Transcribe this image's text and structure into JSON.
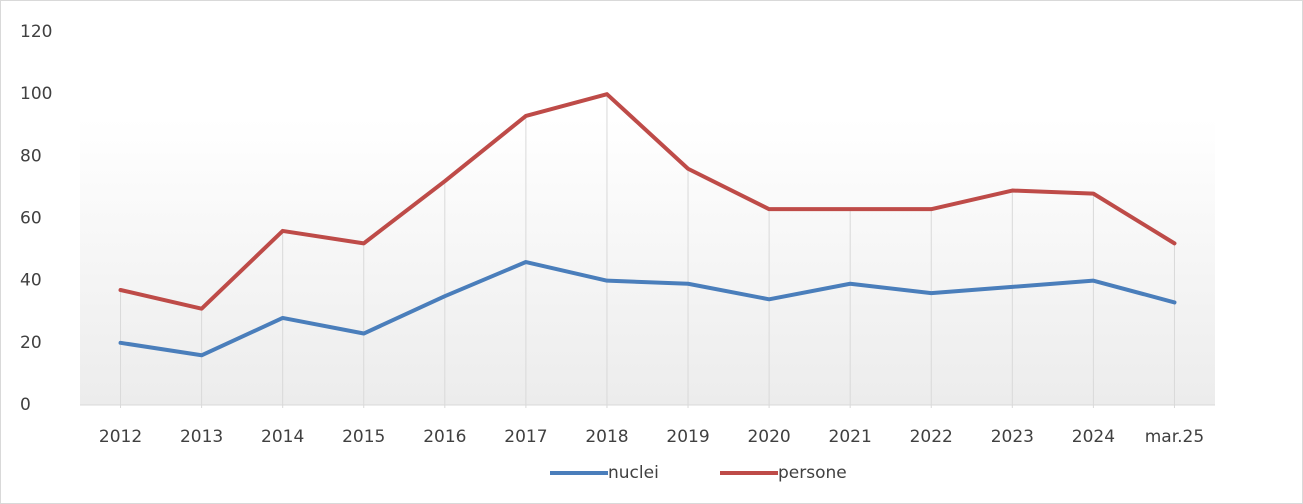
{
  "chart_data": {
    "type": "line",
    "categories": [
      "2012",
      "2013",
      "2014",
      "2015",
      "2016",
      "2017",
      "2018",
      "2019",
      "2020",
      "2021",
      "2022",
      "2023",
      "2024",
      "mar.25"
    ],
    "series": [
      {
        "name": "nuclei",
        "color": "#4a7ebb",
        "values": [
          20,
          16,
          28,
          23,
          35,
          46,
          40,
          39,
          34,
          39,
          36,
          38,
          40,
          33
        ]
      },
      {
        "name": "persone",
        "color": "#be4b48",
        "values": [
          37,
          31,
          56,
          52,
          72,
          93,
          100,
          76,
          63,
          63,
          63,
          69,
          68,
          52
        ]
      }
    ],
    "ylim": [
      0,
      120
    ],
    "yticks": [
      0,
      20,
      40,
      60,
      80,
      100,
      120
    ],
    "legend": "bottom",
    "drop_lines": true
  }
}
